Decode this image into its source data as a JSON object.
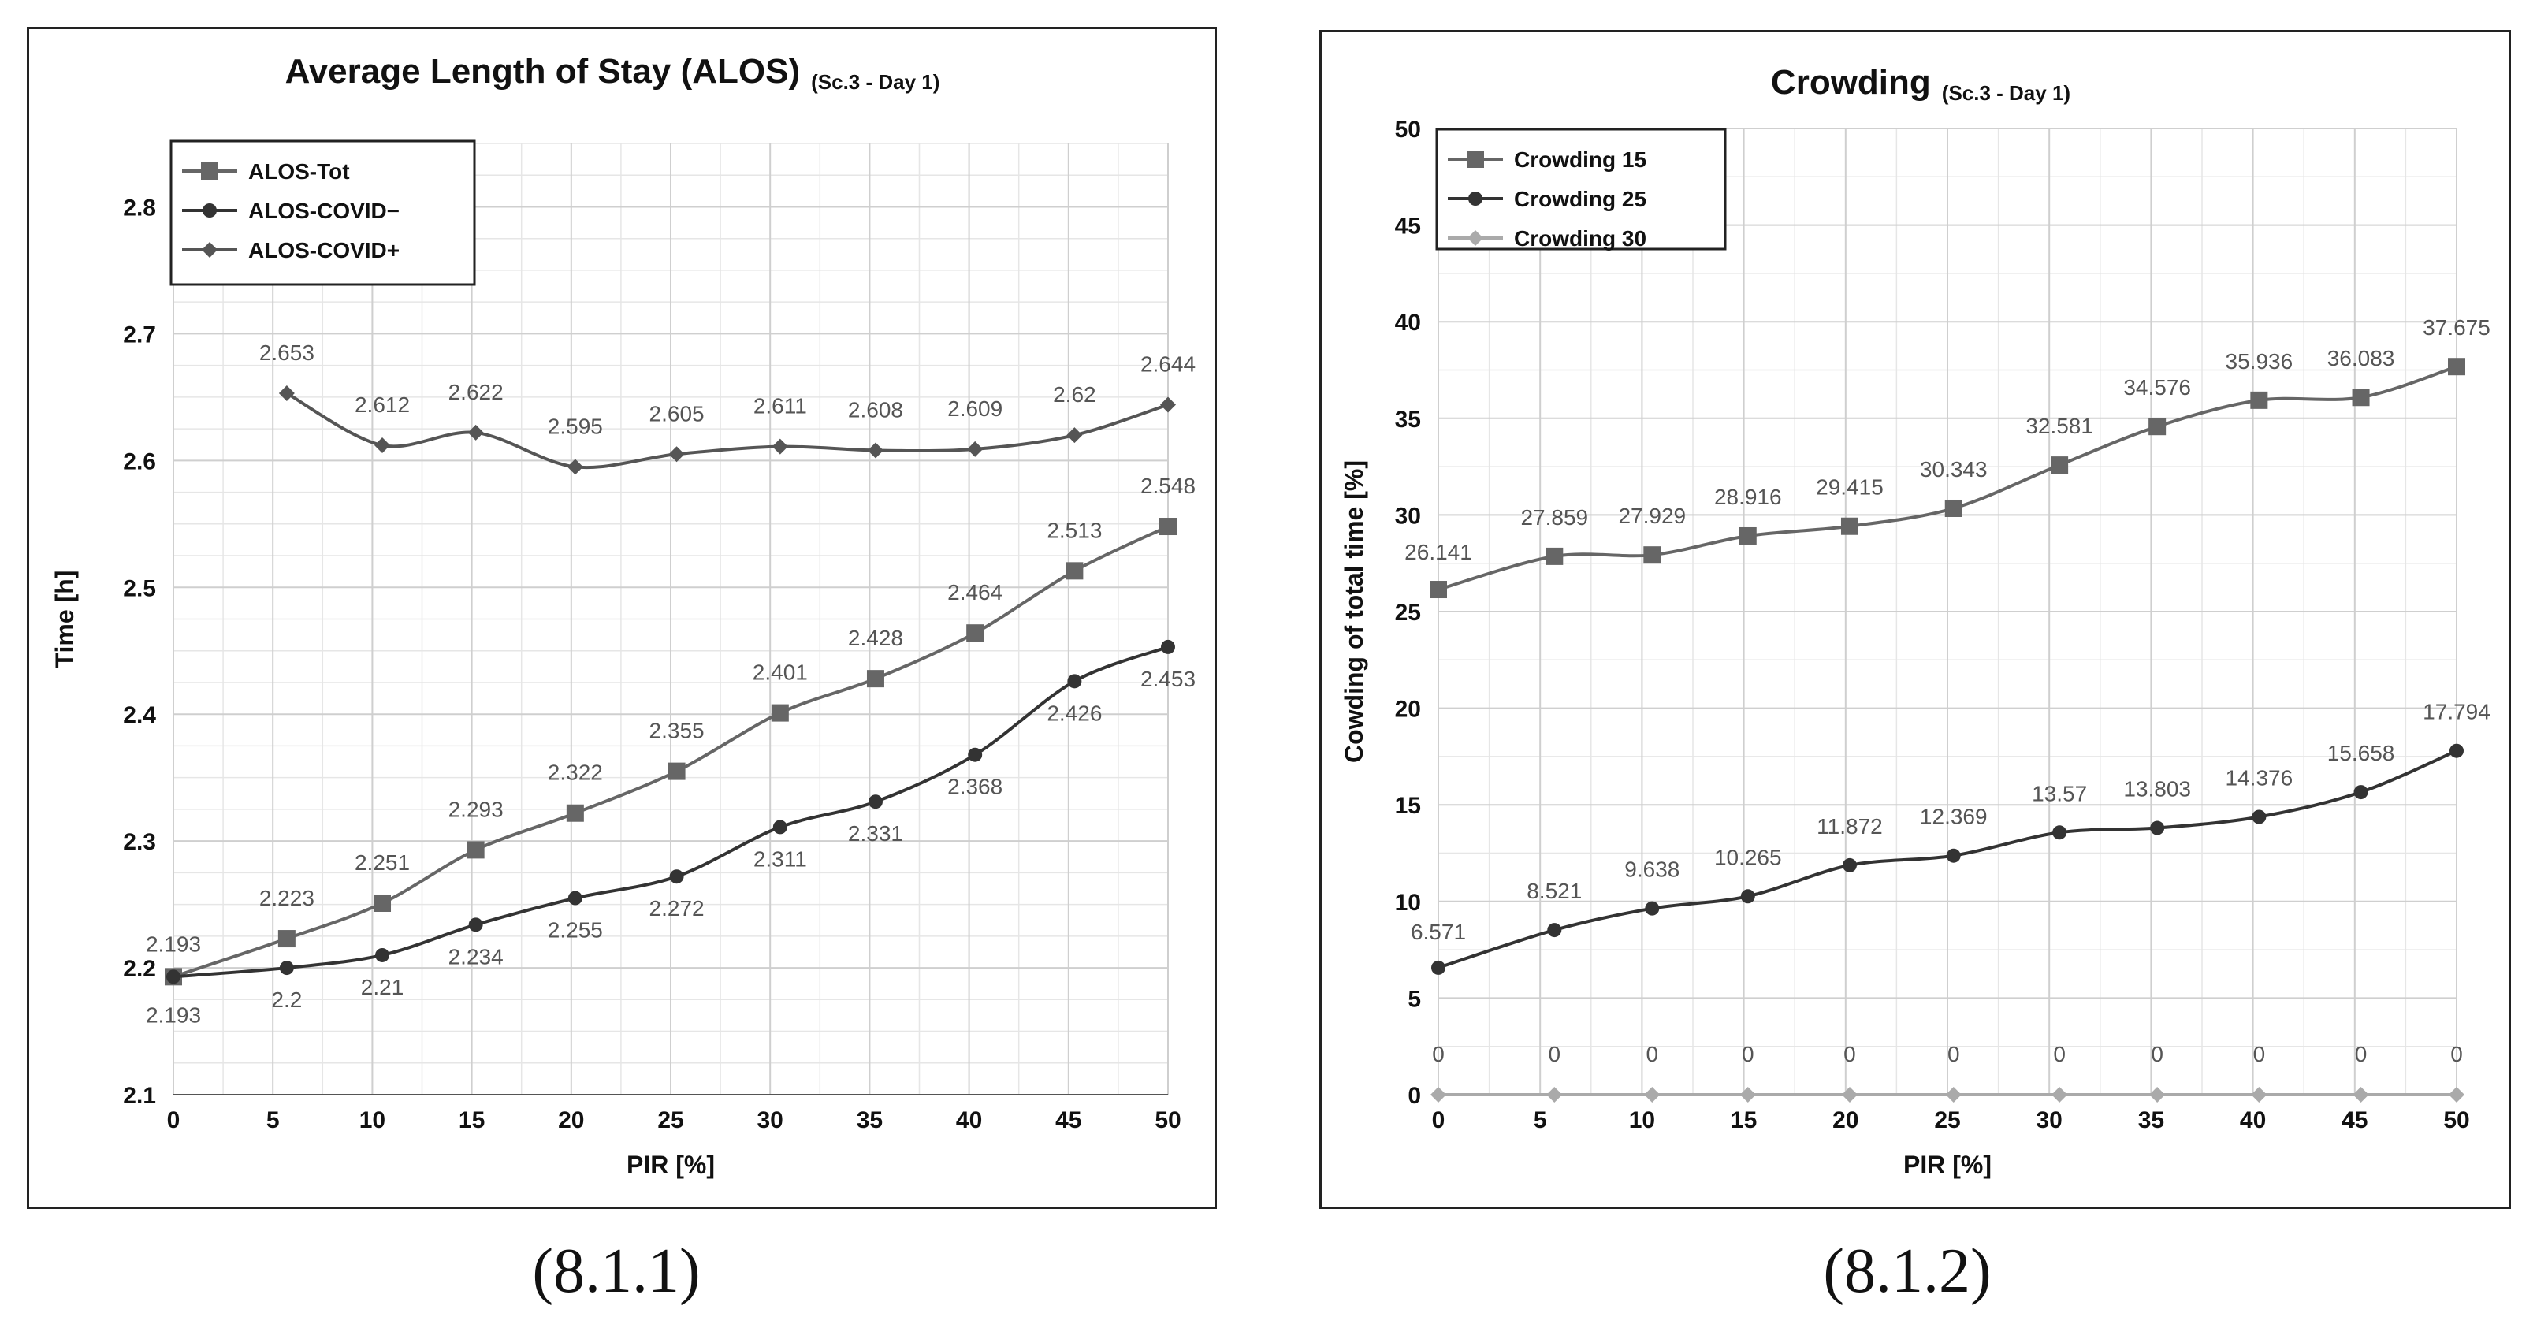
{
  "chart_data": [
    {
      "type": "line",
      "title": "Average Length of Stay (ALOS)",
      "subtitle": "(Sc.3 - Day 1)",
      "xlabel": "PIR [%]",
      "ylabel": "Time [h]",
      "caption": "(8.1.1)",
      "xlim": [
        0,
        50
      ],
      "ylim": [
        2.1,
        2.85
      ],
      "xticks": [
        "0",
        "5",
        "10",
        "15",
        "20",
        "25",
        "30",
        "35",
        "40",
        "45",
        "50"
      ],
      "yticks": [
        "2.1",
        "2.2",
        "2.3",
        "2.4",
        "2.5",
        "2.6",
        "2.7",
        "2.8"
      ],
      "series": [
        {
          "name": "ALOS-Tot",
          "marker": "square",
          "color": "#666666",
          "x": [
            0,
            5.7,
            10.5,
            15.2,
            20.2,
            25.3,
            30.5,
            35.3,
            40.3,
            45.3,
            50
          ],
          "values": [
            2.193,
            2.223,
            2.251,
            2.293,
            2.322,
            2.355,
            2.401,
            2.428,
            2.464,
            2.513,
            2.548
          ],
          "labels": [
            "2.193",
            "2.223",
            "2.251",
            "2.293",
            "2.322",
            "2.355",
            "2.401",
            "2.428",
            "2.464",
            "2.513",
            "2.548"
          ]
        },
        {
          "name": "ALOS-COVID−",
          "marker": "circle",
          "color": "#333333",
          "x": [
            0,
            5.7,
            10.5,
            15.2,
            20.2,
            25.3,
            30.5,
            35.3,
            40.3,
            45.3,
            50
          ],
          "values": [
            2.193,
            2.2,
            2.21,
            2.234,
            2.255,
            2.272,
            2.311,
            2.331,
            2.368,
            2.426,
            2.453
          ],
          "labels": [
            "2.193",
            "2.2",
            "2.21",
            "2.234",
            "2.255",
            "2.272",
            "2.311",
            "2.331",
            "2.368",
            "2.426",
            "2.453"
          ]
        },
        {
          "name": "ALOS-COVID+",
          "marker": "diamond",
          "color": "#555555",
          "x": [
            5.7,
            10.5,
            15.2,
            20.2,
            25.3,
            30.5,
            35.3,
            40.3,
            45.3,
            50
          ],
          "values": [
            2.653,
            2.612,
            2.622,
            2.595,
            2.605,
            2.611,
            2.608,
            2.609,
            2.62,
            2.644
          ],
          "labels": [
            "2.653",
            "2.612",
            "2.622",
            "2.595",
            "2.605",
            "2.611",
            "2.608",
            "2.609",
            "2.62",
            "2.644"
          ]
        }
      ]
    },
    {
      "type": "line",
      "title": "Crowding",
      "subtitle": "(Sc.3 - Day 1)",
      "xlabel": "PIR [%]",
      "ylabel": "Cowding of total time [%]",
      "caption": "(8.1.2)",
      "xlim": [
        0,
        50
      ],
      "ylim": [
        0,
        50
      ],
      "xticks": [
        "0",
        "5",
        "10",
        "15",
        "20",
        "25",
        "30",
        "35",
        "40",
        "45",
        "50"
      ],
      "yticks": [
        "0",
        "5",
        "10",
        "15",
        "20",
        "25",
        "30",
        "35",
        "40",
        "45",
        "50"
      ],
      "series": [
        {
          "name": "Crowding 15",
          "marker": "square",
          "color": "#666666",
          "x": [
            0,
            5.7,
            10.5,
            15.2,
            20.2,
            25.3,
            30.5,
            35.3,
            40.3,
            45.3,
            50
          ],
          "values": [
            26.141,
            27.859,
            27.929,
            28.916,
            29.415,
            30.343,
            32.581,
            34.576,
            35.936,
            36.083,
            37.675
          ],
          "labels": [
            "26.141",
            "27.859",
            "27.929",
            "28.916",
            "29.415",
            "30.343",
            "32.581",
            "34.576",
            "35.936",
            "36.083",
            "37.675"
          ]
        },
        {
          "name": "Crowding 25",
          "marker": "circle",
          "color": "#333333",
          "x": [
            0,
            5.7,
            10.5,
            15.2,
            20.2,
            25.3,
            30.5,
            35.3,
            40.3,
            45.3,
            50
          ],
          "values": [
            6.571,
            8.521,
            9.638,
            10.265,
            11.872,
            12.369,
            13.57,
            13.803,
            14.376,
            15.658,
            17.794
          ],
          "labels": [
            "6.571",
            "8.521",
            "9.638",
            "10.265",
            "11.872",
            "12.369",
            "13.57",
            "13.803",
            "14.376",
            "15.658",
            "17.794"
          ]
        },
        {
          "name": "Crowding 30",
          "marker": "diamond",
          "color": "#aaaaaa",
          "x": [
            0,
            5.7,
            10.5,
            15.2,
            20.2,
            25.3,
            30.5,
            35.3,
            40.3,
            45.3,
            50
          ],
          "values": [
            0,
            0,
            0,
            0,
            0,
            0,
            0,
            0,
            0,
            0,
            0
          ],
          "labels": [
            "0",
            "0",
            "0",
            "0",
            "0",
            "0",
            "0",
            "0",
            "0",
            "0",
            "0"
          ]
        }
      ]
    }
  ]
}
